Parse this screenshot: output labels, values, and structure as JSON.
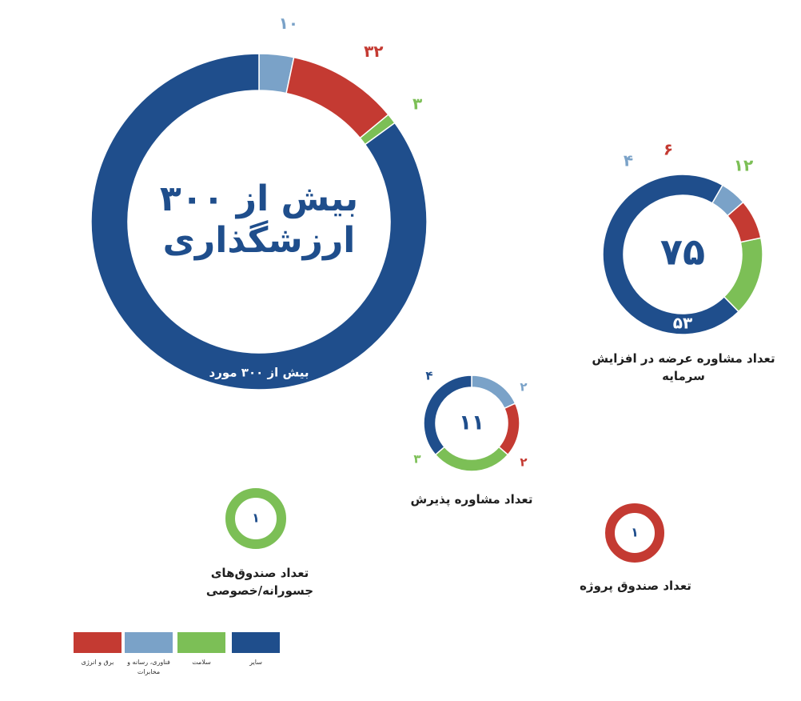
{
  "colors": {
    "energy": "#c43a32",
    "tech": "#7aa2c8",
    "health": "#7cbf56",
    "other": "#1f4e8c",
    "text_dark": "#1f1f1f"
  },
  "legend": [
    {
      "key": "other",
      "label": "سایر"
    },
    {
      "key": "health",
      "label": "سلامت"
    },
    {
      "key": "tech",
      "label": "فناوری، رسانه و مخابرات"
    },
    {
      "key": "energy",
      "label": "برق و انرژی"
    }
  ],
  "chart_data": [
    {
      "type": "donut",
      "id": "valuation",
      "center_text": [
        "بیش از ۳۰۰",
        "ارزشگذاری"
      ],
      "ring_text": "بیش از ۳۰۰ مورد",
      "segments": [
        {
          "key": "tech",
          "value": 10,
          "label": "۱۰"
        },
        {
          "key": "energy",
          "value": 32,
          "label": "۳۲"
        },
        {
          "key": "health",
          "value": 3,
          "label": "۳"
        },
        {
          "key": "other",
          "value": 255,
          "label": ""
        }
      ]
    },
    {
      "type": "donut",
      "id": "capital-increase",
      "center_text": [
        "۷۵"
      ],
      "caption": "تعداد مشاوره عرضه در افزایش سرمایه",
      "segments": [
        {
          "key": "health",
          "value": 12,
          "label": "۱۲"
        },
        {
          "key": "other",
          "value": 53,
          "label": "۵۳"
        },
        {
          "key": "tech",
          "value": 4,
          "label": "۴"
        },
        {
          "key": "energy",
          "value": 6,
          "label": "۶"
        }
      ]
    },
    {
      "type": "donut",
      "id": "admission",
      "center_text": [
        "۱۱"
      ],
      "caption": "تعداد مشاوره پذیرش",
      "segments": [
        {
          "key": "tech",
          "value": 2,
          "label": "۲"
        },
        {
          "key": "energy",
          "value": 2,
          "label": "۲"
        },
        {
          "key": "health",
          "value": 3,
          "label": "۳"
        },
        {
          "key": "other",
          "value": 4,
          "label": "۴"
        }
      ]
    },
    {
      "type": "donut",
      "id": "vc-funds",
      "center_text": [
        "۱"
      ],
      "caption": "تعداد صندوق‌های جسورانه/خصوصی",
      "segments": [
        {
          "key": "health",
          "value": 1,
          "label": ""
        }
      ]
    },
    {
      "type": "donut",
      "id": "project-fund",
      "center_text": [
        "۱"
      ],
      "caption": "تعداد صندوق پروژه",
      "segments": [
        {
          "key": "energy",
          "value": 1,
          "label": ""
        }
      ]
    }
  ]
}
